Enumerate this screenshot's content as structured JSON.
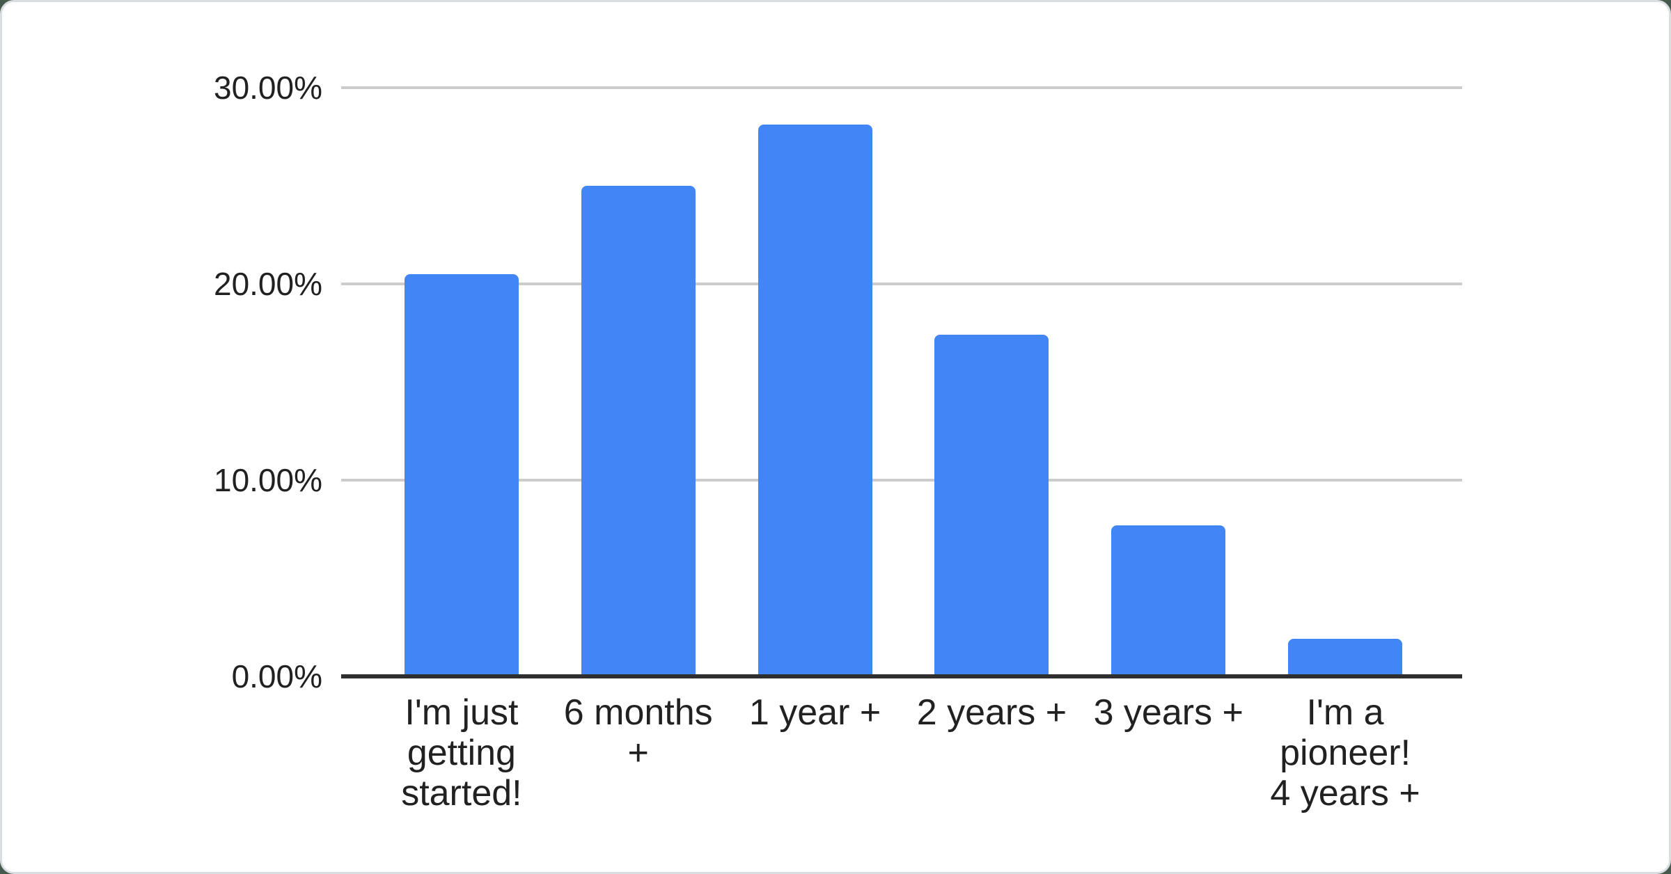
{
  "chart_data": {
    "type": "bar",
    "title": "",
    "xlabel": "",
    "ylabel": "",
    "categories": [
      "I'm just getting started!",
      "6 months +",
      "1 year +",
      "2 years +",
      "3 years +",
      "I'm a pioneer! 4 years +"
    ],
    "category_lines": [
      [
        "I'm just",
        "getting",
        "started!"
      ],
      [
        "6 months",
        "+"
      ],
      [
        "1 year +"
      ],
      [
        "2 years +"
      ],
      [
        "3 years +"
      ],
      [
        "I'm a",
        "pioneer!",
        "4 years +"
      ]
    ],
    "values": [
      20.4,
      24.9,
      28.0,
      17.3,
      7.6,
      1.8
    ],
    "ylim": [
      0,
      30
    ],
    "yticks": [
      0,
      10,
      20,
      30
    ],
    "ytick_labels": [
      "0.00%",
      "10.00%",
      "20.00%",
      "30.00%"
    ],
    "grid": true,
    "legend": "none",
    "colors": {
      "bar": "#4285f4",
      "gridline": "#cccccc",
      "axis_line": "#2f2f2f",
      "label_text": "#212121",
      "card_background": "#ffffff",
      "card_border": "#d9dee0",
      "page_background": "#45594c"
    }
  }
}
